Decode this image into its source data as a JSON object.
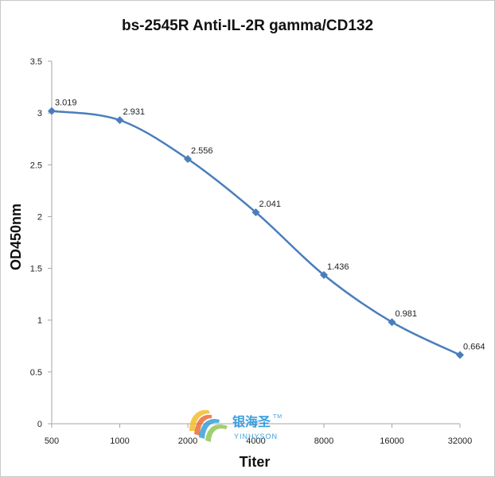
{
  "chart_data": {
    "type": "line",
    "title": "bs-2545R Anti-IL-2R gamma/CD132",
    "xlabel": "Titer",
    "ylabel": "OD450nm",
    "categories": [
      "500",
      "1000",
      "2000",
      "4000",
      "8000",
      "16000",
      "32000"
    ],
    "series": [
      {
        "values": [
          3.019,
          2.931,
          2.556,
          2.041,
          1.436,
          0.981,
          0.664
        ],
        "labels": [
          "3.019",
          "2.931",
          "2.556",
          "2.041",
          "1.436",
          "0.981",
          "0.664"
        ],
        "color": "#4a7ebb"
      }
    ],
    "ylim": [
      0,
      3.5
    ],
    "yticks": [
      "0",
      "0.5",
      "1",
      "1.5",
      "2",
      "2.5",
      "3",
      "3.5"
    ],
    "grid": false,
    "marker": "diamond",
    "smooth": true
  },
  "watermark": {
    "text_cn": "银海圣",
    "tm": "TM",
    "text_en": "YINHYSON"
  },
  "colors": {
    "line": "#4a7ebb",
    "axis": "#a6a6a6"
  }
}
